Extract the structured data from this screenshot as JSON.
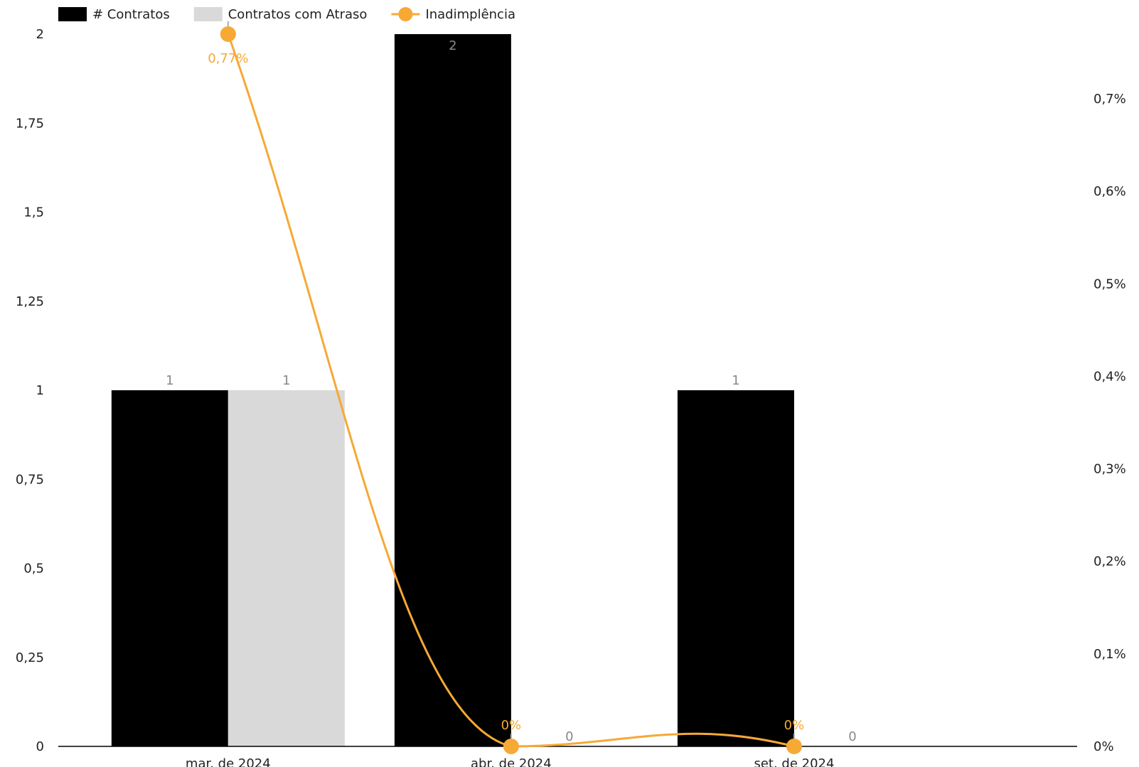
{
  "chart_data": {
    "type": "bar",
    "categories": [
      "mar. de 2024",
      "abr. de 2024",
      "set. de 2024"
    ],
    "series": [
      {
        "name": "# Contratos",
        "kind": "bar",
        "axis": "left",
        "color": "#000000",
        "values": [
          1,
          2,
          1
        ]
      },
      {
        "name": "Contratos com Atraso",
        "kind": "bar",
        "axis": "left",
        "color": "#d9d9d9",
        "values": [
          1,
          0,
          0
        ]
      },
      {
        "name": "Inadimplência",
        "kind": "line",
        "axis": "right",
        "color": "#f6a935",
        "values": [
          0.77,
          0,
          0
        ]
      }
    ],
    "bar_labels": [
      [
        "1",
        "2",
        "1"
      ],
      [
        "1",
        "0",
        "0"
      ]
    ],
    "line_labels": [
      "0,77%",
      "0%",
      "0%"
    ],
    "y_left": {
      "ylim": [
        0,
        2
      ],
      "ticks": [
        0,
        0.25,
        0.5,
        0.75,
        1,
        1.25,
        1.5,
        1.75,
        2
      ],
      "tick_labels": [
        "0",
        "0,25",
        "0,5",
        "0,75",
        "1",
        "1,25",
        "1,5",
        "1,75",
        "2"
      ]
    },
    "y_right": {
      "ylim": [
        0,
        0.77
      ],
      "ticks": [
        0,
        0.1,
        0.2,
        0.3,
        0.4,
        0.5,
        0.6,
        0.7
      ],
      "tick_labels": [
        "0%",
        "0,1%",
        "0,2%",
        "0,3%",
        "0,4%",
        "0,5%",
        "0,6%",
        "0,7%"
      ]
    },
    "legend_position": "top-left",
    "grid": false
  }
}
